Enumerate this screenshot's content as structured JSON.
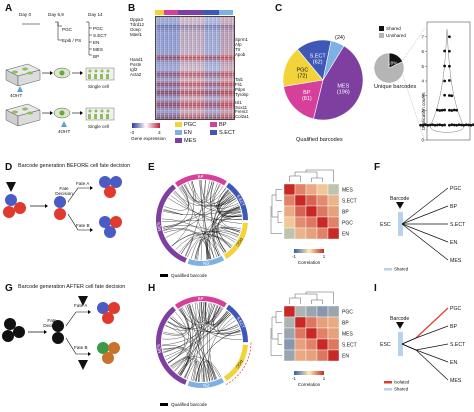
{
  "panels": {
    "A": "A",
    "B": "B",
    "C": "C",
    "D": "D",
    "E": "E",
    "F": "F",
    "G": "G",
    "H": "H",
    "I": "I"
  },
  "panelA": {
    "day0": "Day 0",
    "day69": "Day 6,9",
    "day14": "Day 14",
    "pgc": "PGC",
    "epib_ps": "Epib / PS",
    "fates": [
      "PGC",
      "S.ECT",
      "EN",
      "MES",
      "BP"
    ],
    "ohtA": "4OHT",
    "ohtB": "4OHT",
    "single1": "Single cell",
    "single2": "Single cell"
  },
  "panelB": {
    "genes_top": [
      "Dppa3",
      "Tdrd12",
      "Ooep",
      "Mael1"
    ],
    "genes_mid": [
      "Hand1",
      "Postn",
      "Igf2",
      "Acta2"
    ],
    "genes_right_top": [
      "Sprm1",
      "Afp",
      "Ttr",
      "Apob"
    ],
    "genes_right_bottom": [
      "Tal1",
      "Fli1",
      "Pdpn",
      "Tyrobp",
      "Isl1",
      "Sox11",
      "Frem2",
      "Col2a1"
    ],
    "colorbar_title": "Gene expression",
    "colorbar_min": "-3",
    "colorbar_max": "3",
    "legend": [
      {
        "label": "PGC",
        "color": "#f2d33a"
      },
      {
        "label": "BP",
        "color": "#d6409a"
      },
      {
        "label": "EN",
        "color": "#7db0e3"
      },
      {
        "label": "S.ECT",
        "color": "#3f58b8"
      },
      {
        "label": "MES",
        "color": "#7e3fa0"
      }
    ]
  },
  "panelC": {
    "chart_data": [
      {
        "type": "pie",
        "title": "Qualified barcodes",
        "categories": [
          "MES",
          "BP",
          "PGC",
          "S.ECT",
          "EN"
        ],
        "values": [
          196,
          81,
          72,
          62,
          24
        ],
        "labels": [
          "MES (196)",
          "BP (81)",
          "PGC (72)",
          "S.ECT (62)",
          "(24)"
        ],
        "colors": [
          "#7e3fa0",
          "#d6409a",
          "#f2d33a",
          "#3f58b8",
          "#7db0e3"
        ]
      },
      {
        "type": "pie",
        "title": "Unique barcodes",
        "categories": [
          "Shared",
          "Unshared"
        ],
        "values": [
          18,
          82
        ],
        "labels": [
          "18%",
          ""
        ],
        "colors": [
          "#111111",
          "#b5b5b5"
        ],
        "legend": [
          "Shared",
          "Unshared"
        ]
      },
      {
        "type": "scatter",
        "ylabel": "Duplication counts",
        "ylim": [
          0,
          8
        ],
        "yticks": [
          "0",
          "1",
          "2",
          "3",
          "4",
          "5",
          "6",
          "7"
        ],
        "series": [
          {
            "values": [
              7,
              6,
              6,
              5,
              5,
              4,
              4,
              3,
              3,
              3,
              2,
              2,
              2,
              2,
              2,
              2,
              2,
              2,
              1,
              1,
              1,
              1,
              1,
              1,
              1,
              1,
              1,
              1,
              1,
              1,
              1,
              1,
              1,
              1,
              1,
              1,
              1,
              1,
              1,
              1
            ]
          }
        ]
      }
    ],
    "legend_shared": "Shared",
    "legend_unshared": "Unshared"
  },
  "panelD": {
    "title": "Barcode generation BEFORE cell fate decision",
    "fate_decision": "Fate Decision",
    "fateA": "Fate A",
    "fateB": "Fate B"
  },
  "panelE": {
    "circos_segments": [
      "MES",
      "BP",
      "S.ECT",
      "PGC",
      "EN"
    ],
    "qualified_barcode": "Qualified barcode",
    "heat_rows": [
      "MES",
      "S.ECT",
      "BP",
      "PGC",
      "EN"
    ],
    "corr_label": "Correlation",
    "corr_min": "-1",
    "corr_max": "1"
  },
  "panelF": {
    "barcode": "Barcode",
    "esc": "ESC",
    "fates": [
      "PGC",
      "BP",
      "S.ECT",
      "EN",
      "MES"
    ],
    "shared": "Shared"
  },
  "panelG": {
    "title": "Barcode generation AFTER cell fate decision",
    "fate_decision": "Fate Decision",
    "fateA": "Fate A",
    "fateB": "Fate B"
  },
  "panelH": {
    "circos_segments": [
      "MES",
      "BP",
      "S.ECT",
      "PGC",
      "EN"
    ],
    "qualified_barcode": "Qualified barcode",
    "heat_rows": [
      "PGC",
      "BP",
      "MES",
      "S.ECT",
      "EN"
    ],
    "corr_label": "Correlation",
    "corr_min": "-1",
    "corr_max": "1"
  },
  "panelI": {
    "barcode": "Barcode",
    "esc": "ESC",
    "fates": [
      "PGC",
      "BP",
      "S.ECT",
      "EN",
      "MES"
    ],
    "isolated": "Isolated",
    "shared": "Shared"
  },
  "colors": {
    "mes": "#7e3fa0",
    "bp": "#d6409a",
    "pgc": "#f2d33a",
    "sect": "#3f58b8",
    "en": "#7db0e3",
    "isolated": "#e23b2e"
  }
}
